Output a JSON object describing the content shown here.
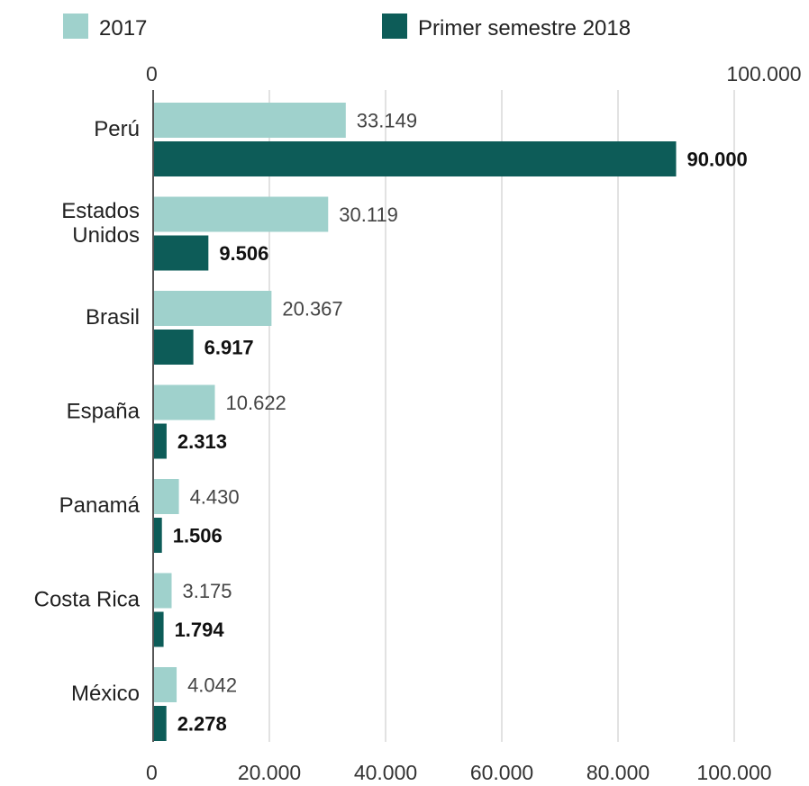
{
  "chart_data": {
    "type": "bar",
    "orientation": "horizontal",
    "categories": [
      [
        "Perú"
      ],
      [
        "Estados",
        "Unidos"
      ],
      [
        "Brasil"
      ],
      [
        "España"
      ],
      [
        "Panamá"
      ],
      [
        "Costa Rica"
      ],
      [
        "México"
      ]
    ],
    "series": [
      {
        "name": "2017",
        "color": "#9fd1cc",
        "values": [
          33149,
          30119,
          20367,
          10622,
          4430,
          3175,
          4042
        ],
        "labels": [
          "33.149",
          "30.119",
          "20.367",
          "10.622",
          "4.430",
          "3.175",
          "4.042"
        ]
      },
      {
        "name": "Primer semestre 2018",
        "color": "#0d5c58",
        "values": [
          90000,
          9506,
          6917,
          2313,
          1506,
          1794,
          2278
        ],
        "labels": [
          "90.000",
          "9.506",
          "6.917",
          "2.313",
          "1.506",
          "1.794",
          "2.278"
        ]
      }
    ],
    "xlim": [
      0,
      100000
    ],
    "bottom_ticks": [
      {
        "value": 0,
        "label": "0"
      },
      {
        "value": 20000,
        "label": "20.000"
      },
      {
        "value": 40000,
        "label": "40.000"
      },
      {
        "value": 60000,
        "label": "60.000"
      },
      {
        "value": 80000,
        "label": "80.000"
      },
      {
        "value": 100000,
        "label": "100.000"
      }
    ],
    "top_ticks": [
      {
        "value": 0,
        "label": "0"
      },
      {
        "value": 100000,
        "label": "100.000"
      }
    ],
    "grid": true,
    "legend": "top-left"
  }
}
